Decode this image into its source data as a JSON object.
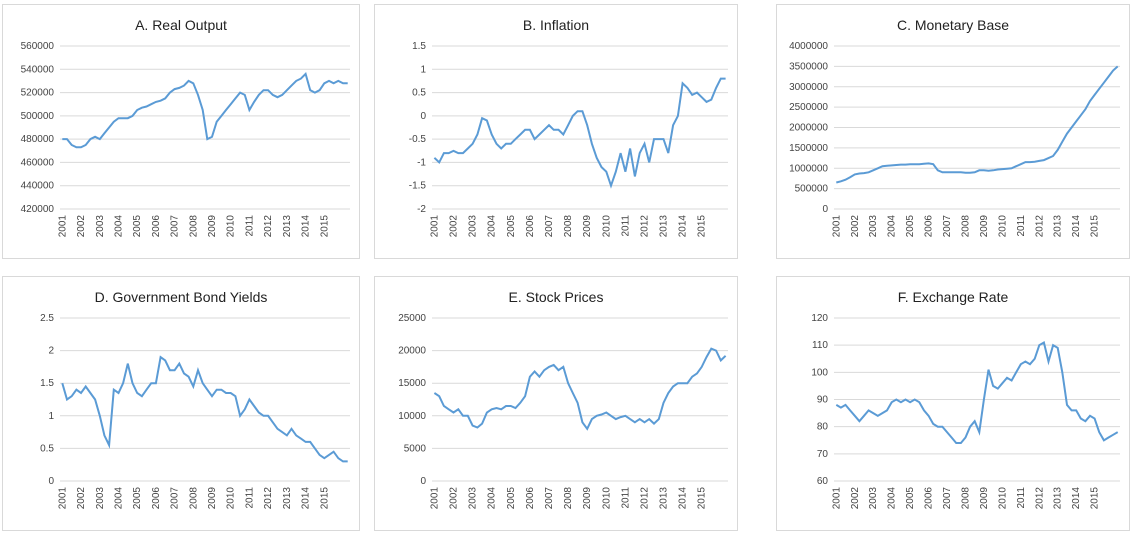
{
  "chart_data": [
    {
      "type": "line",
      "title": "A. Real Output",
      "color": "#5b9bd5",
      "grid": true,
      "categories": [
        "2001",
        null,
        null,
        null,
        "2002",
        null,
        null,
        null,
        "2003",
        null,
        null,
        null,
        "2004",
        null,
        null,
        null,
        "2005",
        null,
        null,
        null,
        "2006",
        null,
        null,
        null,
        "2007",
        null,
        null,
        null,
        "2008",
        null,
        null,
        null,
        "2009",
        null,
        null,
        null,
        "2010",
        null,
        null,
        null,
        "2011",
        null,
        null,
        null,
        "2012",
        null,
        null,
        null,
        "2013",
        null,
        null,
        null,
        "2014",
        null,
        null,
        null,
        "2015",
        null,
        null,
        null,
        null,
        null
      ],
      "values": [
        480000,
        480000,
        475000,
        473000,
        473000,
        475000,
        480000,
        482000,
        480000,
        485000,
        490000,
        495000,
        498000,
        498000,
        498000,
        500000,
        505000,
        507000,
        508000,
        510000,
        512000,
        513000,
        515000,
        520000,
        523000,
        524000,
        526000,
        530000,
        528000,
        518000,
        505000,
        480000,
        482000,
        495000,
        500000,
        505000,
        510000,
        515000,
        520000,
        518000,
        505000,
        512000,
        518000,
        522000,
        522000,
        518000,
        516000,
        518000,
        522000,
        526000,
        530000,
        532000,
        536000,
        522000,
        520000,
        522000,
        528000,
        530000,
        528000,
        530000,
        528000,
        528000
      ],
      "ylim": [
        420000,
        560000
      ],
      "yticks": [
        420000,
        440000,
        460000,
        480000,
        500000,
        520000,
        540000,
        560000
      ]
    },
    {
      "type": "line",
      "title": "B. Inflation",
      "color": "#5b9bd5",
      "grid": true,
      "categories": [
        "2001",
        null,
        null,
        null,
        "2002",
        null,
        null,
        null,
        "2003",
        null,
        null,
        null,
        "2004",
        null,
        null,
        null,
        "2005",
        null,
        null,
        null,
        "2006",
        null,
        null,
        null,
        "2007",
        null,
        null,
        null,
        "2008",
        null,
        null,
        null,
        "2009",
        null,
        null,
        null,
        "2010",
        null,
        null,
        null,
        "2011",
        null,
        null,
        null,
        "2012",
        null,
        null,
        null,
        "2013",
        null,
        null,
        null,
        "2014",
        null,
        null,
        null,
        "2015",
        null,
        null,
        null,
        null,
        null
      ],
      "values": [
        -0.9,
        -1.0,
        -0.8,
        -0.8,
        -0.75,
        -0.8,
        -0.8,
        -0.7,
        -0.6,
        -0.4,
        -0.05,
        -0.1,
        -0.4,
        -0.6,
        -0.7,
        -0.6,
        -0.6,
        -0.5,
        -0.4,
        -0.3,
        -0.3,
        -0.5,
        -0.4,
        -0.3,
        -0.2,
        -0.3,
        -0.3,
        -0.4,
        -0.2,
        0.0,
        0.1,
        0.1,
        -0.2,
        -0.6,
        -0.9,
        -1.1,
        -1.2,
        -1.5,
        -1.2,
        -0.8,
        -1.2,
        -0.7,
        -1.3,
        -0.8,
        -0.6,
        -1.0,
        -0.5,
        -0.5,
        -0.5,
        -0.8,
        -0.2,
        0.0,
        0.7,
        0.6,
        0.45,
        0.5,
        0.4,
        0.3,
        0.35,
        0.6,
        0.8,
        0.8
      ],
      "ylim": [
        -2,
        1.5
      ],
      "yticks": [
        -2,
        -1.5,
        -1,
        -0.5,
        0,
        0.5,
        1,
        1.5
      ]
    },
    {
      "type": "line",
      "title": "C. Monetary Base",
      "color": "#5b9bd5",
      "grid": true,
      "categories": [
        "2001",
        null,
        null,
        null,
        "2002",
        null,
        null,
        null,
        "2003",
        null,
        null,
        null,
        "2004",
        null,
        null,
        null,
        "2005",
        null,
        null,
        null,
        "2006",
        null,
        null,
        null,
        "2007",
        null,
        null,
        null,
        "2008",
        null,
        null,
        null,
        "2009",
        null,
        null,
        null,
        "2010",
        null,
        null,
        null,
        "2011",
        null,
        null,
        null,
        "2012",
        null,
        null,
        null,
        "2013",
        null,
        null,
        null,
        "2014",
        null,
        null,
        null,
        "2015",
        null,
        null,
        null,
        null,
        null
      ],
      "values": [
        650000,
        680000,
        720000,
        780000,
        850000,
        870000,
        880000,
        900000,
        950000,
        1000000,
        1050000,
        1060000,
        1070000,
        1080000,
        1090000,
        1090000,
        1100000,
        1100000,
        1100000,
        1110000,
        1120000,
        1100000,
        950000,
        900000,
        900000,
        900000,
        900000,
        900000,
        890000,
        890000,
        900000,
        950000,
        950000,
        940000,
        950000,
        970000,
        980000,
        990000,
        1000000,
        1050000,
        1100000,
        1150000,
        1150000,
        1160000,
        1180000,
        1200000,
        1250000,
        1300000,
        1450000,
        1650000,
        1850000,
        2000000,
        2150000,
        2300000,
        2450000,
        2650000,
        2800000,
        2950000,
        3100000,
        3250000,
        3400000,
        3500000
      ],
      "ylim": [
        0,
        4000000
      ],
      "yticks": [
        0,
        500000,
        1000000,
        1500000,
        2000000,
        2500000,
        3000000,
        3500000,
        4000000
      ]
    },
    {
      "type": "line",
      "title": "D. Government Bond Yields",
      "color": "#5b9bd5",
      "grid": true,
      "categories": [
        "2001",
        null,
        null,
        null,
        "2002",
        null,
        null,
        null,
        "2003",
        null,
        null,
        null,
        "2004",
        null,
        null,
        null,
        "2005",
        null,
        null,
        null,
        "2006",
        null,
        null,
        null,
        "2007",
        null,
        null,
        null,
        "2008",
        null,
        null,
        null,
        "2009",
        null,
        null,
        null,
        "2010",
        null,
        null,
        null,
        "2011",
        null,
        null,
        null,
        "2012",
        null,
        null,
        null,
        "2013",
        null,
        null,
        null,
        "2014",
        null,
        null,
        null,
        "2015",
        null,
        null,
        null,
        null,
        null
      ],
      "values": [
        1.5,
        1.25,
        1.3,
        1.4,
        1.35,
        1.45,
        1.35,
        1.25,
        1.0,
        0.7,
        0.55,
        1.4,
        1.35,
        1.5,
        1.8,
        1.5,
        1.35,
        1.3,
        1.4,
        1.5,
        1.5,
        1.9,
        1.85,
        1.7,
        1.7,
        1.8,
        1.65,
        1.6,
        1.45,
        1.7,
        1.5,
        1.4,
        1.3,
        1.4,
        1.4,
        1.35,
        1.35,
        1.3,
        1.0,
        1.1,
        1.25,
        1.15,
        1.05,
        1.0,
        1.0,
        0.9,
        0.8,
        0.75,
        0.7,
        0.8,
        0.7,
        0.65,
        0.6,
        0.6,
        0.5,
        0.4,
        0.35,
        0.4,
        0.45,
        0.35,
        0.3,
        0.3
      ],
      "ylim": [
        0,
        2.5
      ],
      "yticks": [
        0,
        0.5,
        1,
        1.5,
        2,
        2.5
      ]
    },
    {
      "type": "line",
      "title": "E. Stock Prices",
      "color": "#5b9bd5",
      "grid": true,
      "categories": [
        "2001",
        null,
        null,
        null,
        "2002",
        null,
        null,
        null,
        "2003",
        null,
        null,
        null,
        "2004",
        null,
        null,
        null,
        "2005",
        null,
        null,
        null,
        "2006",
        null,
        null,
        null,
        "2007",
        null,
        null,
        null,
        "2008",
        null,
        null,
        null,
        "2009",
        null,
        null,
        null,
        "2010",
        null,
        null,
        null,
        "2011",
        null,
        null,
        null,
        "2012",
        null,
        null,
        null,
        "2013",
        null,
        null,
        null,
        "2014",
        null,
        null,
        null,
        "2015",
        null,
        null,
        null,
        null,
        null
      ],
      "values": [
        13500,
        13000,
        11500,
        11000,
        10500,
        11000,
        10000,
        10000,
        8500,
        8200,
        8800,
        10500,
        11000,
        11200,
        11000,
        11500,
        11500,
        11200,
        12000,
        13000,
        16000,
        16800,
        16000,
        17000,
        17500,
        17800,
        17000,
        17500,
        15000,
        13500,
        12000,
        9000,
        8000,
        9500,
        10000,
        10200,
        10500,
        10000,
        9500,
        9800,
        10000,
        9500,
        9000,
        9500,
        9000,
        9500,
        8800,
        9500,
        12000,
        13500,
        14500,
        15000,
        15000,
        15000,
        16000,
        16500,
        17500,
        19000,
        20300,
        20000,
        18500,
        19200
      ],
      "ylim": [
        0,
        25000
      ],
      "yticks": [
        0,
        5000,
        10000,
        15000,
        20000,
        25000
      ]
    },
    {
      "type": "line",
      "title": "F. Exchange Rate",
      "color": "#5b9bd5",
      "grid": true,
      "categories": [
        "2001",
        null,
        null,
        null,
        "2002",
        null,
        null,
        null,
        "2003",
        null,
        null,
        null,
        "2004",
        null,
        null,
        null,
        "2005",
        null,
        null,
        null,
        "2006",
        null,
        null,
        null,
        "2007",
        null,
        null,
        null,
        "2008",
        null,
        null,
        null,
        "2009",
        null,
        null,
        null,
        "2010",
        null,
        null,
        null,
        "2011",
        null,
        null,
        null,
        "2012",
        null,
        null,
        null,
        "2013",
        null,
        null,
        null,
        "2014",
        null,
        null,
        null,
        "2015",
        null,
        null,
        null,
        null,
        null
      ],
      "values": [
        88,
        87,
        88,
        86,
        84,
        82,
        84,
        86,
        85,
        84,
        85,
        86,
        89,
        90,
        89,
        90,
        89,
        90,
        89,
        86,
        84,
        81,
        80,
        80,
        78,
        76,
        74,
        74,
        76,
        80,
        82,
        78,
        90,
        101,
        95,
        94,
        96,
        98,
        97,
        100,
        103,
        104,
        103,
        105,
        110,
        111,
        104,
        110,
        109,
        100,
        88,
        86,
        86,
        83,
        82,
        84,
        83,
        78,
        75,
        76,
        77,
        78
      ],
      "ylim": [
        60,
        120
      ],
      "yticks": [
        60,
        70,
        80,
        90,
        100,
        110,
        120
      ]
    }
  ]
}
